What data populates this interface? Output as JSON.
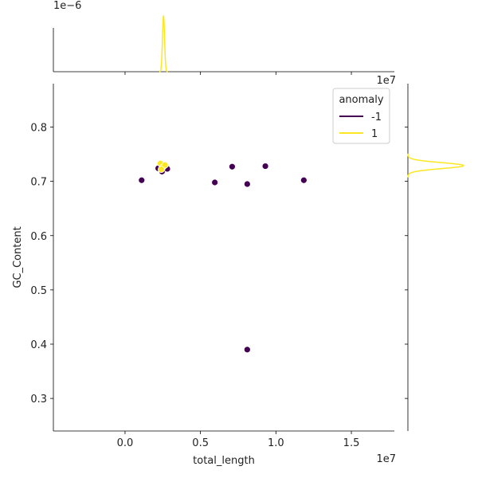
{
  "chart_data": {
    "type": "scatter",
    "xlabel": "total_length",
    "ylabel": "GC_Content",
    "x_offset_label": "1e7",
    "y_offset_label": "1e7",
    "marginal_offset_label": "1e−6",
    "xlim": [
      -4750000,
      17850000
    ],
    "ylim": [
      0.24,
      0.88
    ],
    "x_ticks": [
      0,
      5000000,
      10000000,
      15000000
    ],
    "x_tick_labels": [
      "0.0",
      "0.5",
      "1.0",
      "1.5"
    ],
    "y_ticks": [
      0.3,
      0.4,
      0.5,
      0.6,
      0.7,
      0.8
    ],
    "y_tick_labels": [
      "0.3",
      "0.4",
      "0.5",
      "0.6",
      "0.7",
      "0.8"
    ],
    "grid": false,
    "legend": {
      "title": "anomaly",
      "placement": "top-right",
      "entries": [
        {
          "label": "-1",
          "color": "#440154"
        },
        {
          "label": "1",
          "color": "#fde725"
        }
      ]
    },
    "series": [
      {
        "name": "-1",
        "color": "#440154",
        "points": [
          {
            "x": 1100000,
            "y": 0.702
          },
          {
            "x": 2200000,
            "y": 0.724
          },
          {
            "x": 2450000,
            "y": 0.718
          },
          {
            "x": 2600000,
            "y": 0.727
          },
          {
            "x": 2800000,
            "y": 0.723
          },
          {
            "x": 5950000,
            "y": 0.698
          },
          {
            "x": 7100000,
            "y": 0.727
          },
          {
            "x": 8100000,
            "y": 0.695
          },
          {
            "x": 8100000,
            "y": 0.39
          },
          {
            "x": 9300000,
            "y": 0.728
          },
          {
            "x": 11850000,
            "y": 0.702
          }
        ]
      },
      {
        "name": "1",
        "color": "#fde725",
        "points": [
          {
            "x": 2350000,
            "y": 0.733
          },
          {
            "x": 2500000,
            "y": 0.726
          },
          {
            "x": 2650000,
            "y": 0.73
          },
          {
            "x": 2400000,
            "y": 0.722
          }
        ]
      }
    ],
    "marginal_x": {
      "color": "#fde725",
      "peak_x": 2550000,
      "peak_width": 70000
    },
    "marginal_y": {
      "color": "#fde725",
      "peak_y": 0.729,
      "peak_width": 0.0055
    }
  }
}
